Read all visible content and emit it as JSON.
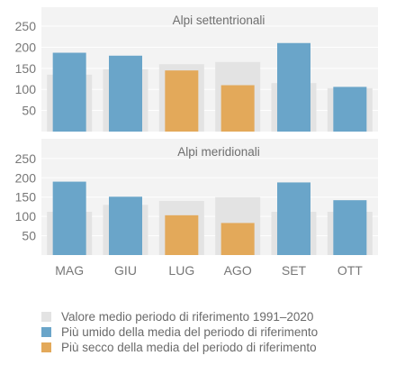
{
  "chart_data": {
    "type": "bar",
    "categories": [
      "MAG",
      "GIU",
      "LUG",
      "AGO",
      "SET",
      "OTT"
    ],
    "yticks": [
      50,
      100,
      150,
      200,
      250
    ],
    "ylim": [
      0,
      280
    ],
    "grid": true,
    "legend_position": "bottom",
    "colors": {
      "reference": "#e3e3e3",
      "wetter": "#6aa5c9",
      "drier": "#e3a95a",
      "panel_background": "#f3f3f3",
      "grid": "#ffffff"
    },
    "panels": [
      {
        "title": "Alpi settentrionali",
        "reference": [
          135,
          148,
          160,
          165,
          115,
          103
        ],
        "values": [
          187,
          180,
          145,
          110,
          210,
          106
        ],
        "status": [
          "wetter",
          "wetter",
          "drier",
          "drier",
          "wetter",
          "wetter"
        ]
      },
      {
        "title": "Alpi meridionali",
        "reference": [
          112,
          130,
          140,
          150,
          112,
          112
        ],
        "values": [
          190,
          151,
          103,
          83,
          188,
          142
        ],
        "status": [
          "wetter",
          "wetter",
          "drier",
          "drier",
          "wetter",
          "wetter"
        ]
      }
    ],
    "legend": [
      {
        "key": "reference",
        "label": "Valore medio periodo di riferimento 1991–2020"
      },
      {
        "key": "wetter",
        "label": "Più umido della media del periodo di riferimento"
      },
      {
        "key": "drier",
        "label": "Più secco della media del periodo di riferimento"
      }
    ]
  }
}
